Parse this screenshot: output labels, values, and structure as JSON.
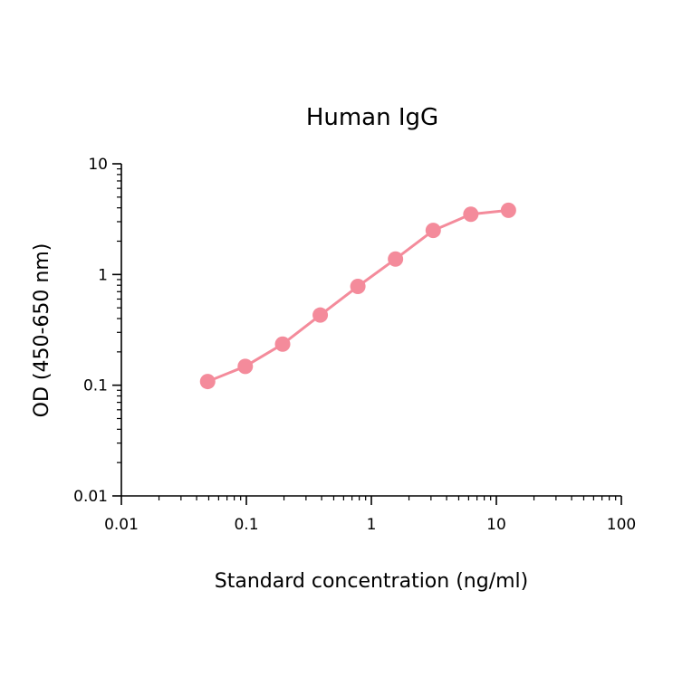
{
  "chart_data": {
    "type": "line",
    "title": "Human IgG",
    "xlabel": "Standard concentration (ng/ml)",
    "ylabel": "OD (450-650 nm)",
    "x_scale": "log",
    "y_scale": "log",
    "xlim": [
      0.01,
      100
    ],
    "ylim": [
      0.01,
      10
    ],
    "x_ticks": [
      {
        "value": 0.01,
        "label": "0.01"
      },
      {
        "value": 0.1,
        "label": "0.1"
      },
      {
        "value": 1,
        "label": "1"
      },
      {
        "value": 10,
        "label": "10"
      },
      {
        "value": 100,
        "label": "100"
      }
    ],
    "y_ticks": [
      {
        "value": 0.01,
        "label": "0.01"
      },
      {
        "value": 0.1,
        "label": "0.1"
      },
      {
        "value": 1,
        "label": "1"
      },
      {
        "value": 10,
        "label": "10"
      }
    ],
    "grid": false,
    "legend": "none",
    "series": [
      {
        "color": "#f48b9b",
        "x": [
          0.049,
          0.098,
          0.195,
          0.39,
          0.78,
          1.56,
          3.125,
          6.25,
          12.5
        ],
        "y": [
          0.108,
          0.148,
          0.235,
          0.43,
          0.78,
          1.38,
          2.5,
          3.5,
          3.8
        ]
      }
    ]
  }
}
